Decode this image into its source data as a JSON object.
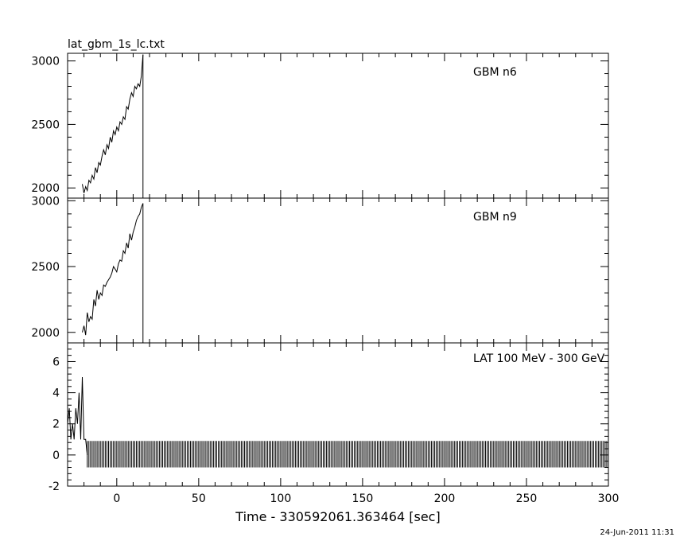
{
  "header": {
    "filename": "lat_gbm_1s_lc.txt"
  },
  "footer": {
    "timestamp": "24-Jun-2011 11:31"
  },
  "chart_data": [
    {
      "type": "line",
      "panel": "top",
      "label": "GBM n6",
      "title": "lat_gbm_1s_lc.txt",
      "xlim": [
        -30,
        300
      ],
      "ylim": [
        1920,
        3060
      ],
      "yticks": [
        2000,
        2500,
        3000
      ],
      "series": [
        {
          "name": "GBM n6",
          "x": [
            -21,
            -20,
            -19,
            -18,
            -17,
            -16,
            -15,
            -14,
            -13,
            -12,
            -11,
            -10,
            -9,
            -8,
            -7,
            -6,
            -5,
            -4,
            -3,
            -2,
            -1,
            0,
            1,
            2,
            3,
            4,
            5,
            6,
            7,
            8,
            9,
            10,
            11,
            12,
            13,
            14,
            15,
            16
          ],
          "y": [
            2030,
            1960,
            2010,
            1980,
            2060,
            2040,
            2100,
            2070,
            2160,
            2120,
            2200,
            2180,
            2250,
            2300,
            2260,
            2340,
            2310,
            2400,
            2360,
            2450,
            2420,
            2480,
            2450,
            2520,
            2500,
            2560,
            2540,
            2640,
            2620,
            2700,
            2750,
            2720,
            2800,
            2780,
            2820,
            2800,
            2880,
            3050
          ]
        }
      ]
    },
    {
      "type": "line",
      "panel": "middle",
      "label": "GBM n9",
      "xlim": [
        -30,
        300
      ],
      "ylim": [
        1920,
        3020
      ],
      "yticks": [
        2000,
        2500,
        3000
      ],
      "series": [
        {
          "name": "GBM n9",
          "x": [
            -21,
            -20,
            -19,
            -18,
            -17,
            -16,
            -15,
            -14,
            -13,
            -12,
            -11,
            -10,
            -9,
            -8,
            -7,
            -6,
            -5,
            -4,
            -3,
            -2,
            -1,
            0,
            1,
            2,
            3,
            4,
            5,
            6,
            7,
            8,
            9,
            10,
            11,
            12,
            13,
            14,
            15,
            16
          ],
          "y": [
            2000,
            2050,
            1980,
            2150,
            2080,
            2120,
            2100,
            2250,
            2200,
            2320,
            2250,
            2300,
            2280,
            2360,
            2350,
            2380,
            2400,
            2420,
            2450,
            2500,
            2480,
            2460,
            2520,
            2550,
            2540,
            2620,
            2600,
            2680,
            2640,
            2750,
            2700,
            2760,
            2800,
            2850,
            2880,
            2900,
            2950,
            2980
          ]
        }
      ]
    },
    {
      "type": "line",
      "panel": "bottom",
      "label": "LAT 100 MeV - 300 GeV",
      "xlabel": "Time - 330592061.363464 [sec]",
      "xlim": [
        -30,
        300
      ],
      "ylim": [
        -2,
        7.2
      ],
      "xticks": [
        0,
        50,
        100,
        150,
        200,
        250,
        300
      ],
      "yticks": [
        -2,
        0,
        2,
        4,
        6
      ],
      "series": [
        {
          "name": "LAT 100 MeV - 300 GeV",
          "x": [
            -30,
            -29,
            -28,
            -27,
            -26,
            -25,
            -24,
            -23,
            -22,
            -21,
            -20,
            -19,
            -18
          ],
          "y": [
            2,
            3,
            1,
            2,
            1,
            3,
            2,
            4,
            1,
            5,
            1,
            1,
            0
          ]
        }
      ],
      "error_bars": {
        "from": -18,
        "to": 300,
        "step": 1,
        "low": -0.8,
        "high": 0.9
      }
    }
  ]
}
